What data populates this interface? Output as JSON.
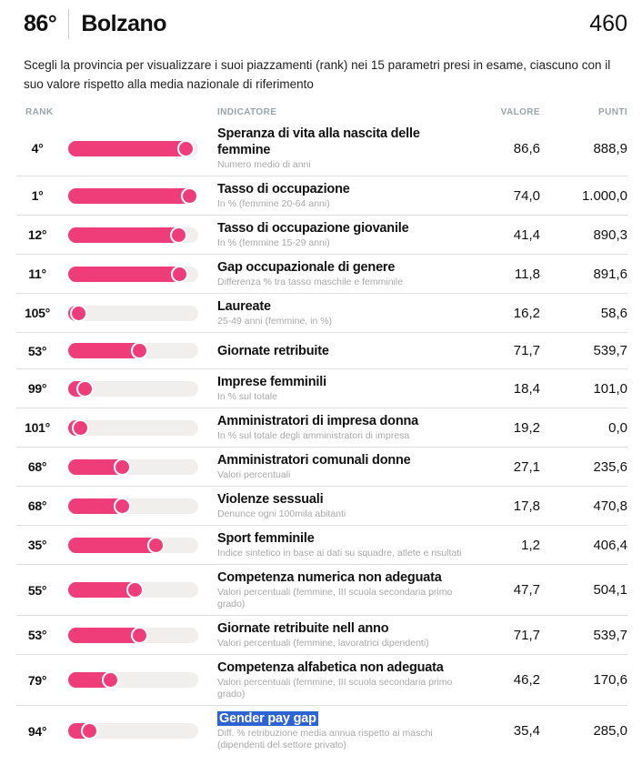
{
  "header": {
    "province_rank": "86°",
    "province_name": "Bolzano",
    "total_points": "460"
  },
  "description": "Scegli la provincia per visualizzare i suoi piazzamenti (rank) nei 15 parametri presi in esame, ciascuno con il suo valore rispetto alla media nazionale di riferimento",
  "colors": {
    "accent": "#ee3d78",
    "bar_track": "#f0efed",
    "selection_highlight": "#2e63d3",
    "column_header_text": "#9ba3ab",
    "subtitle_text": "#a8a8a8",
    "separator": "#dedede"
  },
  "table": {
    "columns": {
      "rank": "RANK",
      "indicator": "INDICATORE",
      "value": "VALORE",
      "points": "PUNTI"
    },
    "rows": [
      {
        "rank": "4°",
        "bar_pct": 97,
        "title": "Speranza di vita alla nascita delle femmine",
        "subtitle": "Numero medio di anni",
        "value": "86,6",
        "points": "888,9",
        "highlighted": false
      },
      {
        "rank": "1°",
        "bar_pct": 100,
        "title": "Tasso di occupazione",
        "subtitle": "In % (femmine 20-64 anni)",
        "value": "74,0",
        "points": "1.000,0",
        "highlighted": false
      },
      {
        "rank": "12°",
        "bar_pct": 90,
        "title": "Tasso di occupazione giovanile",
        "subtitle": "In % (femmine 15-29 anni)",
        "value": "41,4",
        "points": "890,3",
        "highlighted": false
      },
      {
        "rank": "11°",
        "bar_pct": 91,
        "title": "Gap occupazionale di genere",
        "subtitle": "Differenza % tra tasso maschile e femminile",
        "value": "11,8",
        "points": "891,6",
        "highlighted": false
      },
      {
        "rank": "105°",
        "bar_pct": 2,
        "title": "Laureate",
        "subtitle": "25-49 anni (femmine, in %)",
        "value": "16,2",
        "points": "58,6",
        "highlighted": false
      },
      {
        "rank": "53°",
        "bar_pct": 56,
        "title": "Giornate retribuite",
        "subtitle": "",
        "value": "71,7",
        "points": "539,7",
        "highlighted": false
      },
      {
        "rank": "99°",
        "bar_pct": 7,
        "title": "Imprese femminili",
        "subtitle": "In % sul totale",
        "value": "18,4",
        "points": "101,0",
        "highlighted": false
      },
      {
        "rank": "101°",
        "bar_pct": 3,
        "title": "Amministratori di impresa donna",
        "subtitle": "In % sul totale degli amministratori di impresa",
        "value": "19,2",
        "points": "0,0",
        "highlighted": false
      },
      {
        "rank": "68°",
        "bar_pct": 40,
        "title": "Amministratori comunali donne",
        "subtitle": "Valori percentuali",
        "value": "27,1",
        "points": "235,6",
        "highlighted": false
      },
      {
        "rank": "68°",
        "bar_pct": 40,
        "title": "Violenze sessuali",
        "subtitle": "Denunce ogni 100mila abitanti",
        "value": "17,8",
        "points": "470,8",
        "highlighted": false
      },
      {
        "rank": "35°",
        "bar_pct": 70,
        "title": "Sport femminile",
        "subtitle": "Indice sintetico in base ai dati su squadre, atlete e risultati",
        "value": "1,2",
        "points": "406,4",
        "highlighted": false
      },
      {
        "rank": "55°",
        "bar_pct": 52,
        "title": "Competenza numerica non adeguata",
        "subtitle": "Valori percentuali (femmine, III scuola secondaria primo grado)",
        "value": "47,7",
        "points": "504,1",
        "highlighted": false
      },
      {
        "rank": "53°",
        "bar_pct": 56,
        "title": "Giornate retribuite nell anno",
        "subtitle": "Valori percentuali (femmine, lavoratrici dipendenti)",
        "value": "71,7",
        "points": "539,7",
        "highlighted": false
      },
      {
        "rank": "79°",
        "bar_pct": 30,
        "title": "Competenza alfabetica non adeguata",
        "subtitle": "Valori percentuali (femmine, III scuola secondaria primo grado)",
        "value": "46,2",
        "points": "170,6",
        "highlighted": false
      },
      {
        "rank": "94°",
        "bar_pct": 11,
        "title": "Gender pay gap",
        "subtitle": "Diff. % retribuzione media annua rispetto ai maschi (dipendenti del settore privato)",
        "value": "35,4",
        "points": "285,0",
        "highlighted": true
      }
    ]
  }
}
